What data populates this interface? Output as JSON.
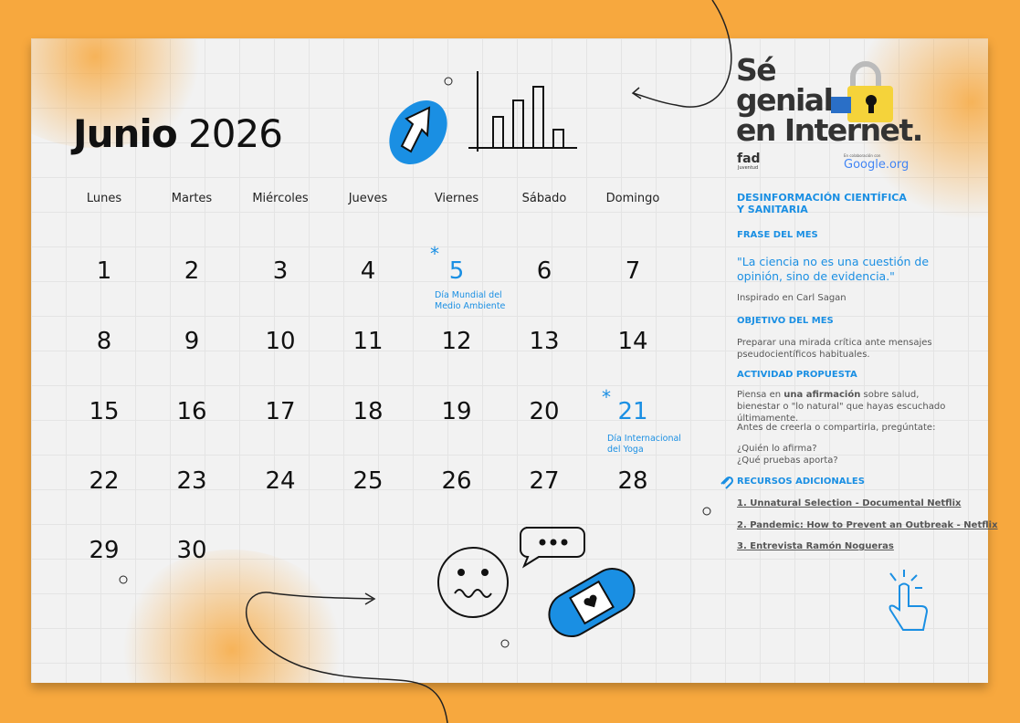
{
  "title": {
    "month": "Junio",
    "year": "2026"
  },
  "weekdays": [
    "Lunes",
    "Martes",
    "Miércoles",
    "Jueves",
    "Viernes",
    "Sábado",
    "Domingo"
  ],
  "weeks": [
    [
      "1",
      "2",
      "3",
      "4",
      "5",
      "6",
      "7"
    ],
    [
      "8",
      "9",
      "10",
      "11",
      "12",
      "13",
      "14"
    ],
    [
      "15",
      "16",
      "17",
      "18",
      "19",
      "20",
      "21"
    ],
    [
      "22",
      "23",
      "24",
      "25",
      "26",
      "27",
      "28"
    ],
    [
      "29",
      "30"
    ]
  ],
  "events": [
    {
      "day": "5",
      "label": "Día Mundial del Medio Ambiente"
    },
    {
      "day": "21",
      "label": "Día Internacional del Yoga"
    }
  ],
  "logo": {
    "line1": "Sé",
    "line2": "genial",
    "line3": "en Internet.",
    "fad": "fad",
    "fad_sub": "Juventud",
    "collab": "En colaboración con",
    "google": "Google.org"
  },
  "side": {
    "topic": "DESINFORMACIÓN CIENTÍFICA Y SANITARIA",
    "quote_heading": "FRASE DEL MES",
    "quote": "\"La ciencia no es una cuestión de opinión, sino de evidencia.\"",
    "quote_source": "Inspirado en Carl Sagan",
    "goal_heading": "OBJETIVO DEL MES",
    "goal": "Preparar una mirada crítica ante mensajes pseudocientíficos habituales.",
    "activity_heading": "ACTIVIDAD PROPUESTA",
    "activity_pre": "Piensa en ",
    "activity_bold": "una afirmación",
    "activity_post": " sobre salud, bienestar o \"lo natural\" que hayas escuchado últimamente.",
    "activity_2": "Antes de creerla o compartirla, pregúntate:",
    "q1": "¿Quién lo afirma?",
    "q2": "¿Qué pruebas aporta?",
    "resources_heading": "RECURSOS ADICIONALES",
    "resources": [
      "1. Unnatural Selection - Documental Netflix",
      "2. Pandemic: How to Prevent an Outbreak - Netflix",
      "3. Entrevista Ramón Nogueras"
    ]
  },
  "colors": {
    "accent": "#1a8fe3",
    "background": "#f7a83e",
    "paper": "#f2f2f2"
  }
}
